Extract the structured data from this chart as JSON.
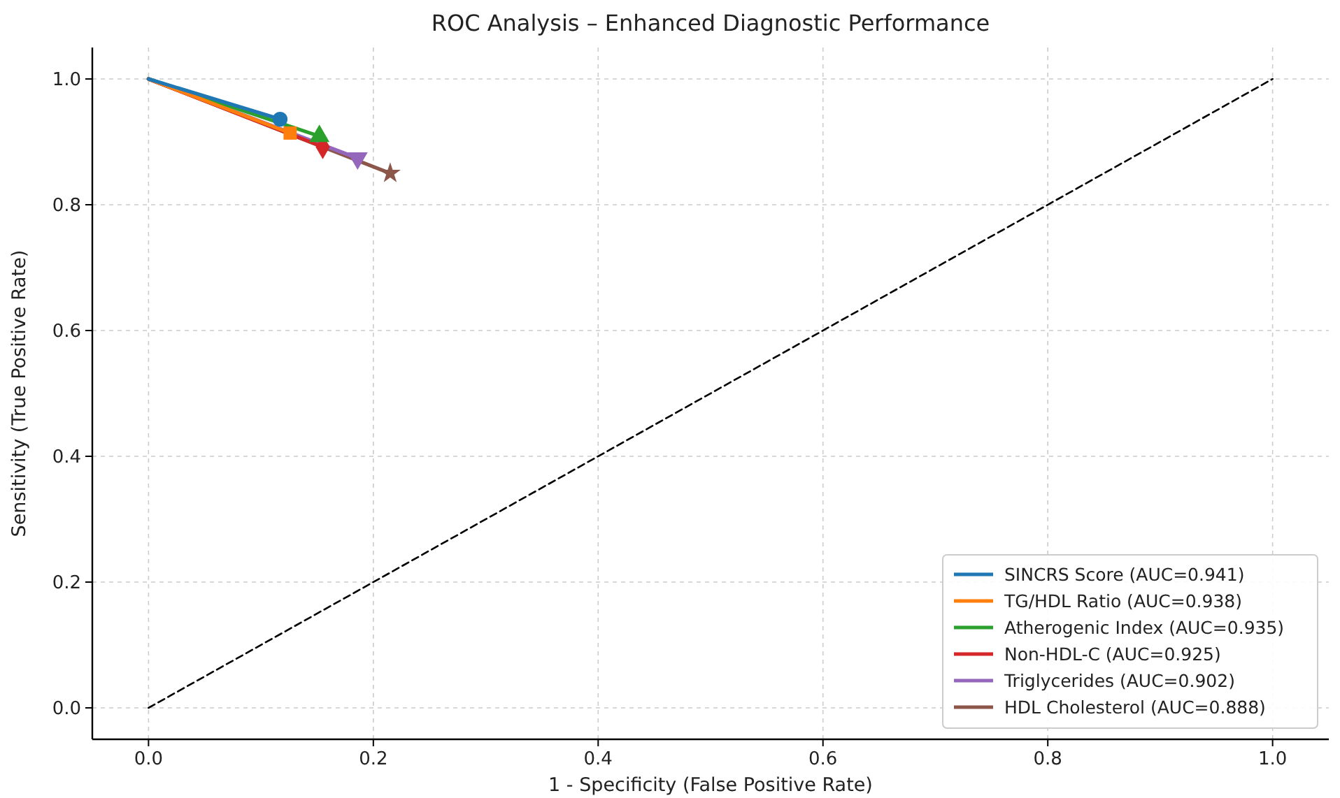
{
  "chart_data": {
    "type": "line",
    "title": "ROC Analysis – Enhanced Diagnostic Performance",
    "xlabel": "1 - Specificity (False Positive Rate)",
    "ylabel": "Sensitivity (True Positive Rate)",
    "xlim": [
      -0.05,
      1.05
    ],
    "ylim": [
      -0.05,
      1.05
    ],
    "xticks": [
      {
        "value": 0,
        "label": "0.0"
      },
      0.2,
      0.4,
      0.6,
      0.8,
      {
        "value": 1,
        "label": "1.0"
      }
    ],
    "yticks": [
      {
        "value": 0,
        "label": "0.0"
      },
      0.2,
      0.4,
      0.6,
      0.8,
      {
        "value": 1,
        "label": "1.0"
      }
    ],
    "grid": true,
    "legend": "bottom right",
    "series": [
      {
        "name": "SINCRS Score (AUC=0.941)",
        "color": "#1f77b4",
        "x": [
          0,
          0.117
        ],
        "values": [
          1,
          0.936
        ],
        "marker": "circle"
      },
      {
        "name": "TG/HDL Ratio (AUC=0.938)",
        "color": "#ff7f0e",
        "x": [
          0,
          0.126
        ],
        "values": [
          1,
          0.914
        ],
        "marker": "square"
      },
      {
        "name": "Atherogenic Index (AUC=0.935)",
        "color": "#2ca02c",
        "x": [
          0,
          0.152
        ],
        "values": [
          1,
          0.909
        ],
        "marker": "triangle"
      },
      {
        "name": "Non-HDL-C (AUC=0.925)",
        "color": "#d62728",
        "x": [
          0,
          0.155
        ],
        "values": [
          1,
          0.892
        ],
        "marker": "diamond"
      },
      {
        "name": "Triglycerides (AUC=0.902)",
        "color": "#9467bd",
        "x": [
          0,
          0.186
        ],
        "values": [
          1,
          0.874
        ],
        "marker": "triangle-down"
      },
      {
        "name": "HDL Cholesterol (AUC=0.888)",
        "color": "#8c564b",
        "x": [
          0,
          0.215
        ],
        "values": [
          1,
          0.85
        ],
        "marker": "star"
      },
      {
        "color": "#000000",
        "x": [
          0,
          1
        ],
        "values": [
          0,
          1
        ],
        "line_style": "dashed",
        "marker": "none"
      }
    ]
  }
}
